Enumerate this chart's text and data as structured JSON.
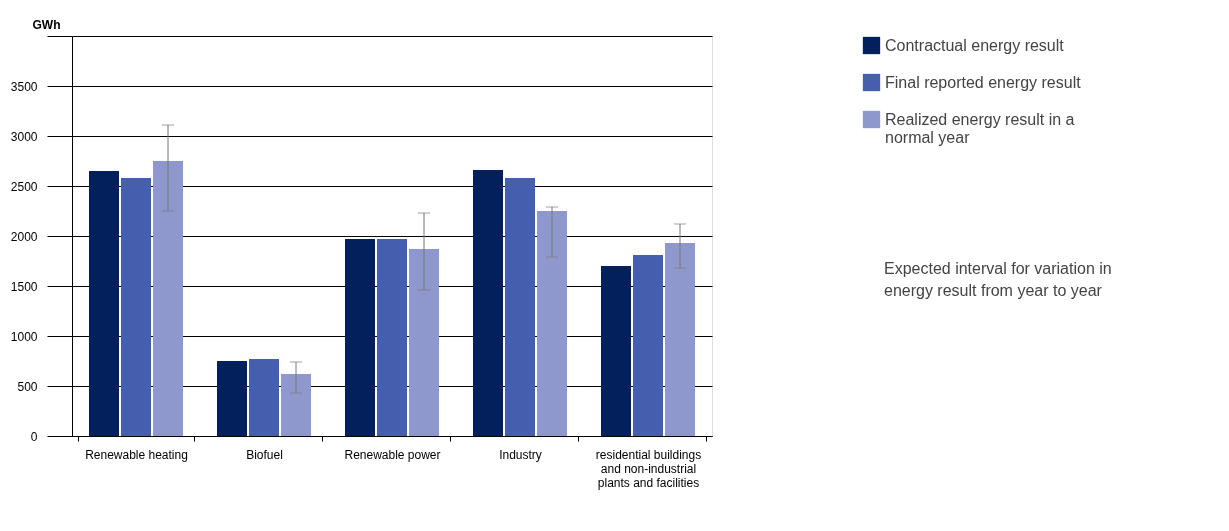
{
  "chart_data": {
    "type": "bar",
    "ylabel": "GWh",
    "categories": [
      "Renewable heating",
      "Biofuel",
      "Renewable power",
      "Industry",
      "residential buildings and non-industrial plants and facilities"
    ],
    "series": [
      {
        "name": "Contractual energy result",
        "color": "#03205c",
        "values": [
          2650,
          750,
          1970,
          2660,
          1700
        ]
      },
      {
        "name": "Final reported energy result",
        "color": "#455eae",
        "values": [
          2580,
          770,
          1970,
          2580,
          1810
        ]
      },
      {
        "name": "Realized energy result in a normal year",
        "color": "#8f98cc",
        "values": [
          2750,
          620,
          1870,
          2250,
          1930
        ],
        "errors": [
          [
            2250,
            3110
          ],
          [
            430,
            740
          ],
          [
            1460,
            2230
          ],
          [
            1790,
            2290
          ],
          [
            1680,
            2120
          ]
        ]
      }
    ],
    "ylim": [
      0,
      4000
    ],
    "yticks": [
      0,
      500,
      1000,
      1500,
      2000,
      2500,
      3000,
      3500,
      {
        "value": 4000,
        "label": null
      }
    ],
    "grid": "y",
    "legend": "right",
    "annotations": [
      "Expected interval for variation in energy result from year to year"
    ]
  }
}
